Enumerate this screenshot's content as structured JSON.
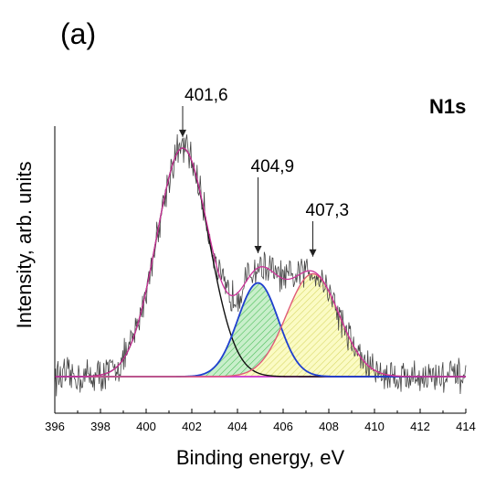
{
  "chart_data": {
    "type": "line",
    "panel_label": "(a)",
    "title": "N1s",
    "xlabel": "Binding energy, eV",
    "ylabel": "Intensity, arb. units",
    "xlim": [
      396,
      414
    ],
    "xticks": [
      "396",
      "398",
      "400",
      "402",
      "404",
      "406",
      "408",
      "410",
      "412",
      "414"
    ],
    "ylim": [
      -0.12,
      1.2
    ],
    "y_tick_labels": false,
    "grid": false,
    "baseline": 0,
    "colors": {
      "raw": "#444444",
      "envelope": "#cc3399",
      "baseline": "#cc33cc",
      "peak1": "#111111",
      "peak2": "#1f3fcf",
      "peak3": "#e05a78",
      "fill2": "#9fe0a6",
      "fill3": "#f4f59a"
    },
    "series": [
      {
        "center": 401.6,
        "amplitude": 1.0,
        "fwhm": 2.7,
        "fill": false
      },
      {
        "center": 404.9,
        "amplitude": 0.41,
        "fwhm": 2.1,
        "fill": true
      },
      {
        "center": 407.3,
        "amplitude": 0.45,
        "fwhm": 2.7,
        "fill": true
      }
    ],
    "annotations": [
      {
        "text": "401,6",
        "x": 401.6
      },
      {
        "text": "404,9",
        "x": 404.9
      },
      {
        "text": "407,3",
        "x": 407.3
      }
    ]
  }
}
